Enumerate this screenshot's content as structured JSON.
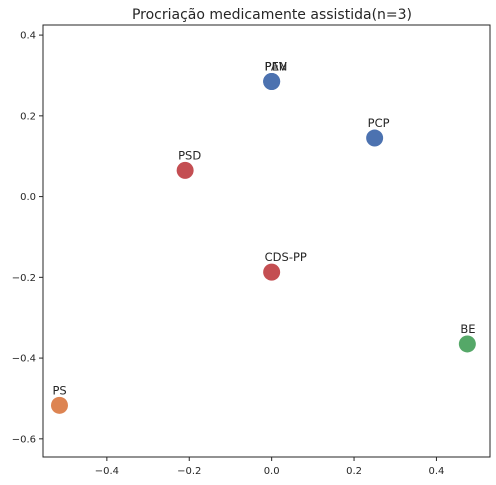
{
  "chart_data": {
    "type": "scatter",
    "title": "Procriação medicamente assistida(n=3)",
    "xlabel": "",
    "ylabel": "",
    "xlim": [
      -0.555,
      0.53
    ],
    "ylim": [
      -0.645,
      0.425
    ],
    "xticks": [
      -0.4,
      -0.2,
      0.0,
      0.2,
      0.4
    ],
    "xtick_labels": [
      "−0.4",
      "−0.2",
      "0.0",
      "0.2",
      "0.4"
    ],
    "yticks": [
      -0.6,
      -0.4,
      -0.2,
      0.0,
      0.2,
      0.4
    ],
    "ytick_labels": [
      "−0.6",
      "−0.4",
      "−0.2",
      "0.0",
      "0.2",
      "0.4"
    ],
    "grid": false,
    "points": [
      {
        "label": "PEV",
        "x": 0.0,
        "y": 0.285,
        "color": "#4c72b0"
      },
      {
        "label": "PAN",
        "x": 0.0,
        "y": 0.285,
        "color": "#4c72b0"
      },
      {
        "label": "PCP",
        "x": 0.25,
        "y": 0.145,
        "color": "#4c72b0"
      },
      {
        "label": "PSD",
        "x": -0.21,
        "y": 0.065,
        "color": "#c44e52"
      },
      {
        "label": "CDS-PP",
        "x": 0.0,
        "y": -0.187,
        "color": "#c44e52"
      },
      {
        "label": "BE",
        "x": 0.475,
        "y": -0.365,
        "color": "#55a868"
      },
      {
        "label": "PS",
        "x": -0.515,
        "y": -0.517,
        "color": "#dd8452"
      }
    ]
  }
}
